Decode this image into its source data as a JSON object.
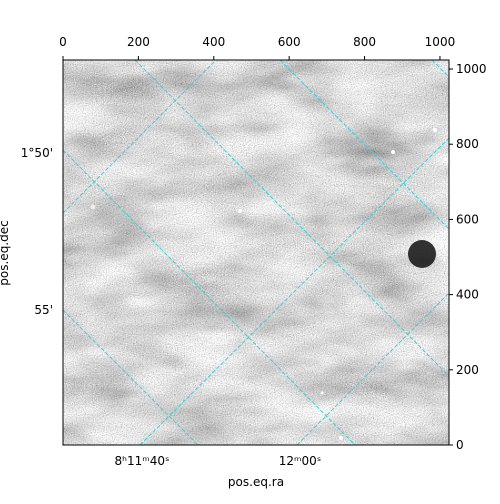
{
  "chart_data": {
    "type": "image",
    "x_label": "pos.eq.ra",
    "y_label": "pos.eq.dec",
    "xlim": [
      0,
      1024
    ],
    "ylim": [
      0,
      1024
    ],
    "xticks": [
      0,
      200,
      400,
      600,
      800,
      1000
    ],
    "yticks": [
      0,
      200,
      400,
      600,
      800,
      1000
    ],
    "ra_ticks": [
      "8ʰ11ᵐ40ˢ",
      "12ᵐ00ˢ"
    ],
    "dec_ticks": [
      "1°50'",
      "55'"
    ],
    "grid": true,
    "grid_color": "#3fd0d0",
    "cmap": "gray"
  }
}
